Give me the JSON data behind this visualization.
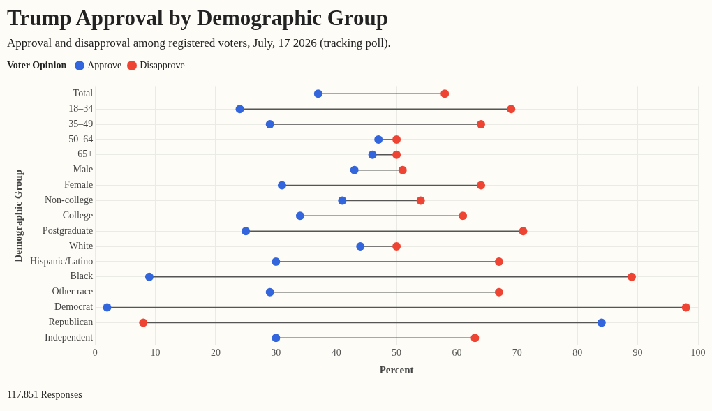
{
  "chart_data": {
    "type": "scatter",
    "title": "Trump Approval by Demographic Group",
    "subtitle": "Approval and disapproval among registered voters, July, 17 2026 (tracking poll).",
    "xlabel": "Percent",
    "ylabel": "Demographic Group",
    "legend_title": "Voter Opinion",
    "legend": "top left",
    "grid": true,
    "marker": "circle",
    "orientation": "horizontal",
    "categories": [
      "Total",
      "18–34",
      "35–49",
      "50–64",
      "65+",
      "Male",
      "Female",
      "Non-college",
      "College",
      "Postgraduate",
      "White",
      "Hispanic/Latino",
      "Black",
      "Other race",
      "Democrat",
      "Republican",
      "Independent"
    ],
    "series": [
      {
        "name": "Approve",
        "color": "#3366dd",
        "values": [
          37,
          24,
          29,
          47,
          46,
          43,
          31,
          41,
          34,
          25,
          44,
          30,
          9,
          29,
          2,
          84,
          30
        ]
      },
      {
        "name": "Disapprove",
        "color": "#ee4433",
        "values": [
          58,
          69,
          64,
          50,
          50,
          51,
          64,
          54,
          61,
          71,
          50,
          67,
          89,
          67,
          98,
          8,
          63
        ]
      }
    ],
    "xlim": [
      0,
      100
    ],
    "xticks": [
      0,
      10,
      20,
      30,
      40,
      50,
      60,
      70,
      80,
      90,
      100
    ],
    "annotations": [
      "117,851 Responses"
    ]
  }
}
